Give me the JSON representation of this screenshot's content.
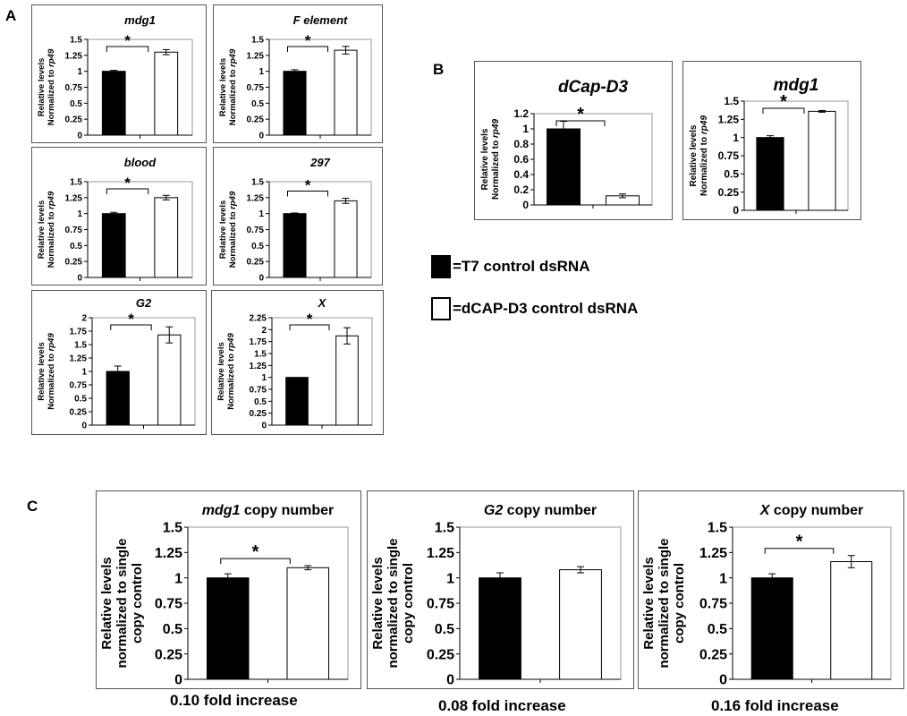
{
  "figure": {
    "panel_labels": {
      "a": "A",
      "b": "B",
      "c": "C"
    },
    "legend": [
      {
        "label": "=T7 control dsRNA",
        "fill": "#000000"
      },
      {
        "label": "=dCAP-D3 control dsRNA",
        "fill": "#ffffff"
      }
    ],
    "fold_labels": [
      "0.10 fold increase",
      "0.08 fold increase",
      "0.16 fold increase"
    ]
  },
  "chart_data": [
    {
      "id": "A-mdg1",
      "type": "bar",
      "title": "mdg1",
      "title_suffix": "",
      "ylabel": [
        "Relative levels",
        "Normalized to rp49"
      ],
      "ylim": [
        0,
        1.5
      ],
      "ticks": [
        0,
        0.25,
        0.5,
        0.75,
        1,
        1.25,
        1.5
      ],
      "tick_labels": [
        "0",
        "0.25",
        "0.5",
        "0.75",
        "1",
        "1.25",
        "1.5"
      ],
      "categories": [
        "T7 control dsRNA",
        "dCAP-D3 control dsRNA"
      ],
      "values": [
        1.0,
        1.3
      ],
      "errors": [
        0.015,
        0.04
      ],
      "significance": "*"
    },
    {
      "id": "A-F",
      "type": "bar",
      "title": "F element",
      "title_suffix": "",
      "ylabel": [
        "Relative levels",
        "Normalized to rp49"
      ],
      "ylim": [
        0,
        1.5
      ],
      "ticks": [
        0,
        0.25,
        0.5,
        0.75,
        1,
        1.25,
        1.5
      ],
      "tick_labels": [
        "0",
        "0.25",
        "0.5",
        "0.75",
        "1",
        "1.25",
        "1.5"
      ],
      "categories": [
        "T7 control dsRNA",
        "dCAP-D3 control dsRNA"
      ],
      "values": [
        1.0,
        1.33
      ],
      "errors": [
        0.025,
        0.06
      ],
      "significance": "*"
    },
    {
      "id": "A-blood",
      "type": "bar",
      "title": "blood",
      "title_suffix": "",
      "ylabel": [
        "Relative levels",
        "Normalized to rp49"
      ],
      "ylim": [
        0,
        1.5
      ],
      "ticks": [
        0,
        0.25,
        0.5,
        0.75,
        1,
        1.25,
        1.5
      ],
      "tick_labels": [
        "0",
        "0.25",
        "0.5",
        "0.75",
        "1",
        "1.25",
        "1.5"
      ],
      "categories": [
        "T7 control dsRNA",
        "dCAP-D3 control dsRNA"
      ],
      "values": [
        1.0,
        1.25
      ],
      "errors": [
        0.02,
        0.035
      ],
      "significance": "*"
    },
    {
      "id": "A-297",
      "type": "bar",
      "title": "297",
      "title_suffix": "",
      "ylabel": [
        "Relative levels",
        "Normalized to rp49"
      ],
      "ylim": [
        0,
        1.5
      ],
      "ticks": [
        0,
        0.25,
        0.5,
        0.75,
        1,
        1.25,
        1.5
      ],
      "tick_labels": [
        "0",
        "0.25",
        "0.5",
        "0.75",
        "1",
        "1.25",
        "1.5"
      ],
      "categories": [
        "T7 control dsRNA",
        "dCAP-D3 control dsRNA"
      ],
      "values": [
        1.0,
        1.2
      ],
      "errors": [
        0.01,
        0.04
      ],
      "significance": "*"
    },
    {
      "id": "A-G2",
      "type": "bar",
      "title": "G2",
      "title_suffix": "",
      "ylabel": [
        "Relative levels",
        "Normalized to rp49"
      ],
      "ylim": [
        0,
        2
      ],
      "ticks": [
        0,
        0.25,
        0.5,
        0.75,
        1,
        1.25,
        1.5,
        1.75,
        2
      ],
      "tick_labels": [
        "0",
        "0.25",
        "0.5",
        "0.75",
        "1",
        "1.25",
        "1.5",
        "1.75",
        "2"
      ],
      "categories": [
        "T7 control dsRNA",
        "dCAP-D3 control dsRNA"
      ],
      "values": [
        1.0,
        1.68
      ],
      "errors": [
        0.1,
        0.15
      ],
      "significance": "*"
    },
    {
      "id": "A-X",
      "type": "bar",
      "title": "X",
      "title_suffix": "",
      "ylabel": [
        "Relative levels",
        "Normalized to rp49"
      ],
      "ylim": [
        0,
        2.25
      ],
      "ticks": [
        0,
        0.25,
        0.5,
        0.75,
        1,
        1.25,
        1.5,
        1.75,
        2,
        2.25
      ],
      "tick_labels": [
        "0",
        "0.25",
        "0.5",
        "0.75",
        "1",
        "1.25",
        "1.5",
        "1.75",
        "2",
        "2.25"
      ],
      "categories": [
        "T7 control dsRNA",
        "dCAP-D3 control dsRNA"
      ],
      "values": [
        1.0,
        1.87
      ],
      "errors": [
        0.0,
        0.17
      ],
      "significance": "*"
    },
    {
      "id": "B-dCapD3",
      "type": "bar",
      "title": "dCap-D3",
      "title_suffix": "",
      "ylabel": [
        "Relative levels",
        "Normalized to rp49"
      ],
      "ylim": [
        0,
        1.2
      ],
      "ticks": [
        0,
        0.2,
        0.4,
        0.6,
        0.8,
        1,
        1.2
      ],
      "tick_labels": [
        "0",
        "0.2",
        "0.4",
        "0.6",
        "0.8",
        "1",
        "1.2"
      ],
      "categories": [
        "T7 control dsRNA",
        "dCAP-D3 control dsRNA"
      ],
      "values": [
        1.0,
        0.12
      ],
      "errors": [
        0.1,
        0.025
      ],
      "significance": "*"
    },
    {
      "id": "B-mdg1",
      "type": "bar",
      "title": "mdg1",
      "title_suffix": "",
      "ylabel": [
        "Relative levels",
        "Normalized to rp49"
      ],
      "ylim": [
        0,
        1.5
      ],
      "ticks": [
        0,
        0.25,
        0.5,
        0.75,
        1,
        1.25,
        1.5
      ],
      "tick_labels": [
        "0",
        "0.25",
        "0.5",
        "0.75",
        "1",
        "1.25",
        "1.5"
      ],
      "categories": [
        "T7 control dsRNA",
        "dCAP-D3 control dsRNA"
      ],
      "values": [
        1.0,
        1.36
      ],
      "errors": [
        0.025,
        0.012
      ],
      "significance": "*"
    },
    {
      "id": "C-mdg1",
      "type": "bar",
      "title": "mdg1",
      "title_suffix": " copy number",
      "ylabel": [
        "Relative levels",
        "normalized to single",
        "copy control"
      ],
      "ylim": [
        0,
        1.5
      ],
      "ticks": [
        0,
        0.25,
        0.5,
        0.75,
        1,
        1.25,
        1.5
      ],
      "tick_labels": [
        "0",
        "0.25",
        "0.5",
        "0.75",
        "1",
        "1.25",
        "1.5"
      ],
      "categories": [
        "T7 control dsRNA",
        "dCAP-D3 control dsRNA"
      ],
      "values": [
        1.0,
        1.1
      ],
      "errors": [
        0.04,
        0.02
      ],
      "significance": "*"
    },
    {
      "id": "C-G2",
      "type": "bar",
      "title": "G2",
      "title_suffix": " copy number",
      "ylabel": [
        "Relative levels",
        "normalized to single",
        "copy control"
      ],
      "ylim": [
        0,
        1.5
      ],
      "ticks": [
        0,
        0.25,
        0.5,
        0.75,
        1,
        1.25,
        1.5
      ],
      "tick_labels": [
        "0",
        "0.25",
        "0.5",
        "0.75",
        "1",
        "1.25",
        "1.5"
      ],
      "categories": [
        "T7 control dsRNA",
        "dCAP-D3 control dsRNA"
      ],
      "values": [
        1.0,
        1.08
      ],
      "errors": [
        0.05,
        0.03
      ],
      "significance": ""
    },
    {
      "id": "C-X",
      "type": "bar",
      "title": "X",
      "title_suffix": " copy number",
      "ylabel": [
        "Relative levels",
        "normalized to single",
        "copy control"
      ],
      "ylim": [
        0,
        1.5
      ],
      "ticks": [
        0,
        0.25,
        0.5,
        0.75,
        1,
        1.25,
        1.5
      ],
      "tick_labels": [
        "0",
        "0.25",
        "0.5",
        "0.75",
        "1",
        "1.25",
        "1.5"
      ],
      "categories": [
        "T7 control dsRNA",
        "dCAP-D3 control dsRNA"
      ],
      "values": [
        1.0,
        1.16
      ],
      "errors": [
        0.04,
        0.06
      ],
      "significance": "*"
    }
  ]
}
